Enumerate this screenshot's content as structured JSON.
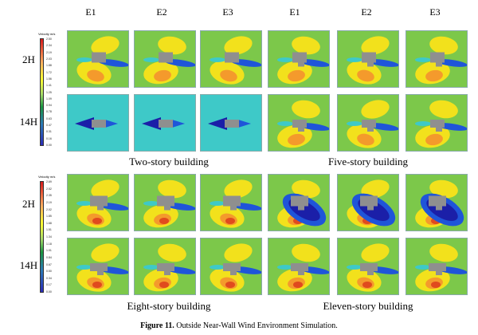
{
  "columns": [
    "E1",
    "E2",
    "E3",
    "E1",
    "E2",
    "E3"
  ],
  "rows": [
    "2H",
    "14H"
  ],
  "groups": {
    "top_left": "Two-story building",
    "top_right": "Five-story building",
    "bottom_left": "Eight-story building",
    "bottom_right": "Eleven-story building"
  },
  "legend_top": {
    "title": "Velocity m/s",
    "ticks": [
      "2.50",
      "2.34",
      "2.19",
      "2.03",
      "1.88",
      "1.72",
      "1.56",
      "1.41",
      "1.25",
      "1.09",
      "0.94",
      "0.78",
      "0.63",
      "0.47",
      "0.31",
      "0.16",
      "0.00"
    ]
  },
  "legend_bottom": {
    "title": "Velocity m/s",
    "ticks": [
      "2.69",
      "2.52",
      "2.35",
      "2.19",
      "2.02",
      "1.85",
      "1.68",
      "1.51",
      "1.34",
      "1.18",
      "1.01",
      "0.84",
      "0.67",
      "0.50",
      "0.34",
      "0.17",
      "0.00"
    ]
  },
  "caption": {
    "label": "Figure 11.",
    "text": " Outside Near-Wall Wind Environment Simulation."
  },
  "colors": {
    "field_green": "#7cc84a",
    "field_cyan": "#3ec9c8",
    "yellow": "#f2e11c",
    "orange": "#f49a2c",
    "red": "#e04a1e",
    "blue": "#1f55d9",
    "navy": "#1b1fa8",
    "building": "#8f8f8f"
  }
}
